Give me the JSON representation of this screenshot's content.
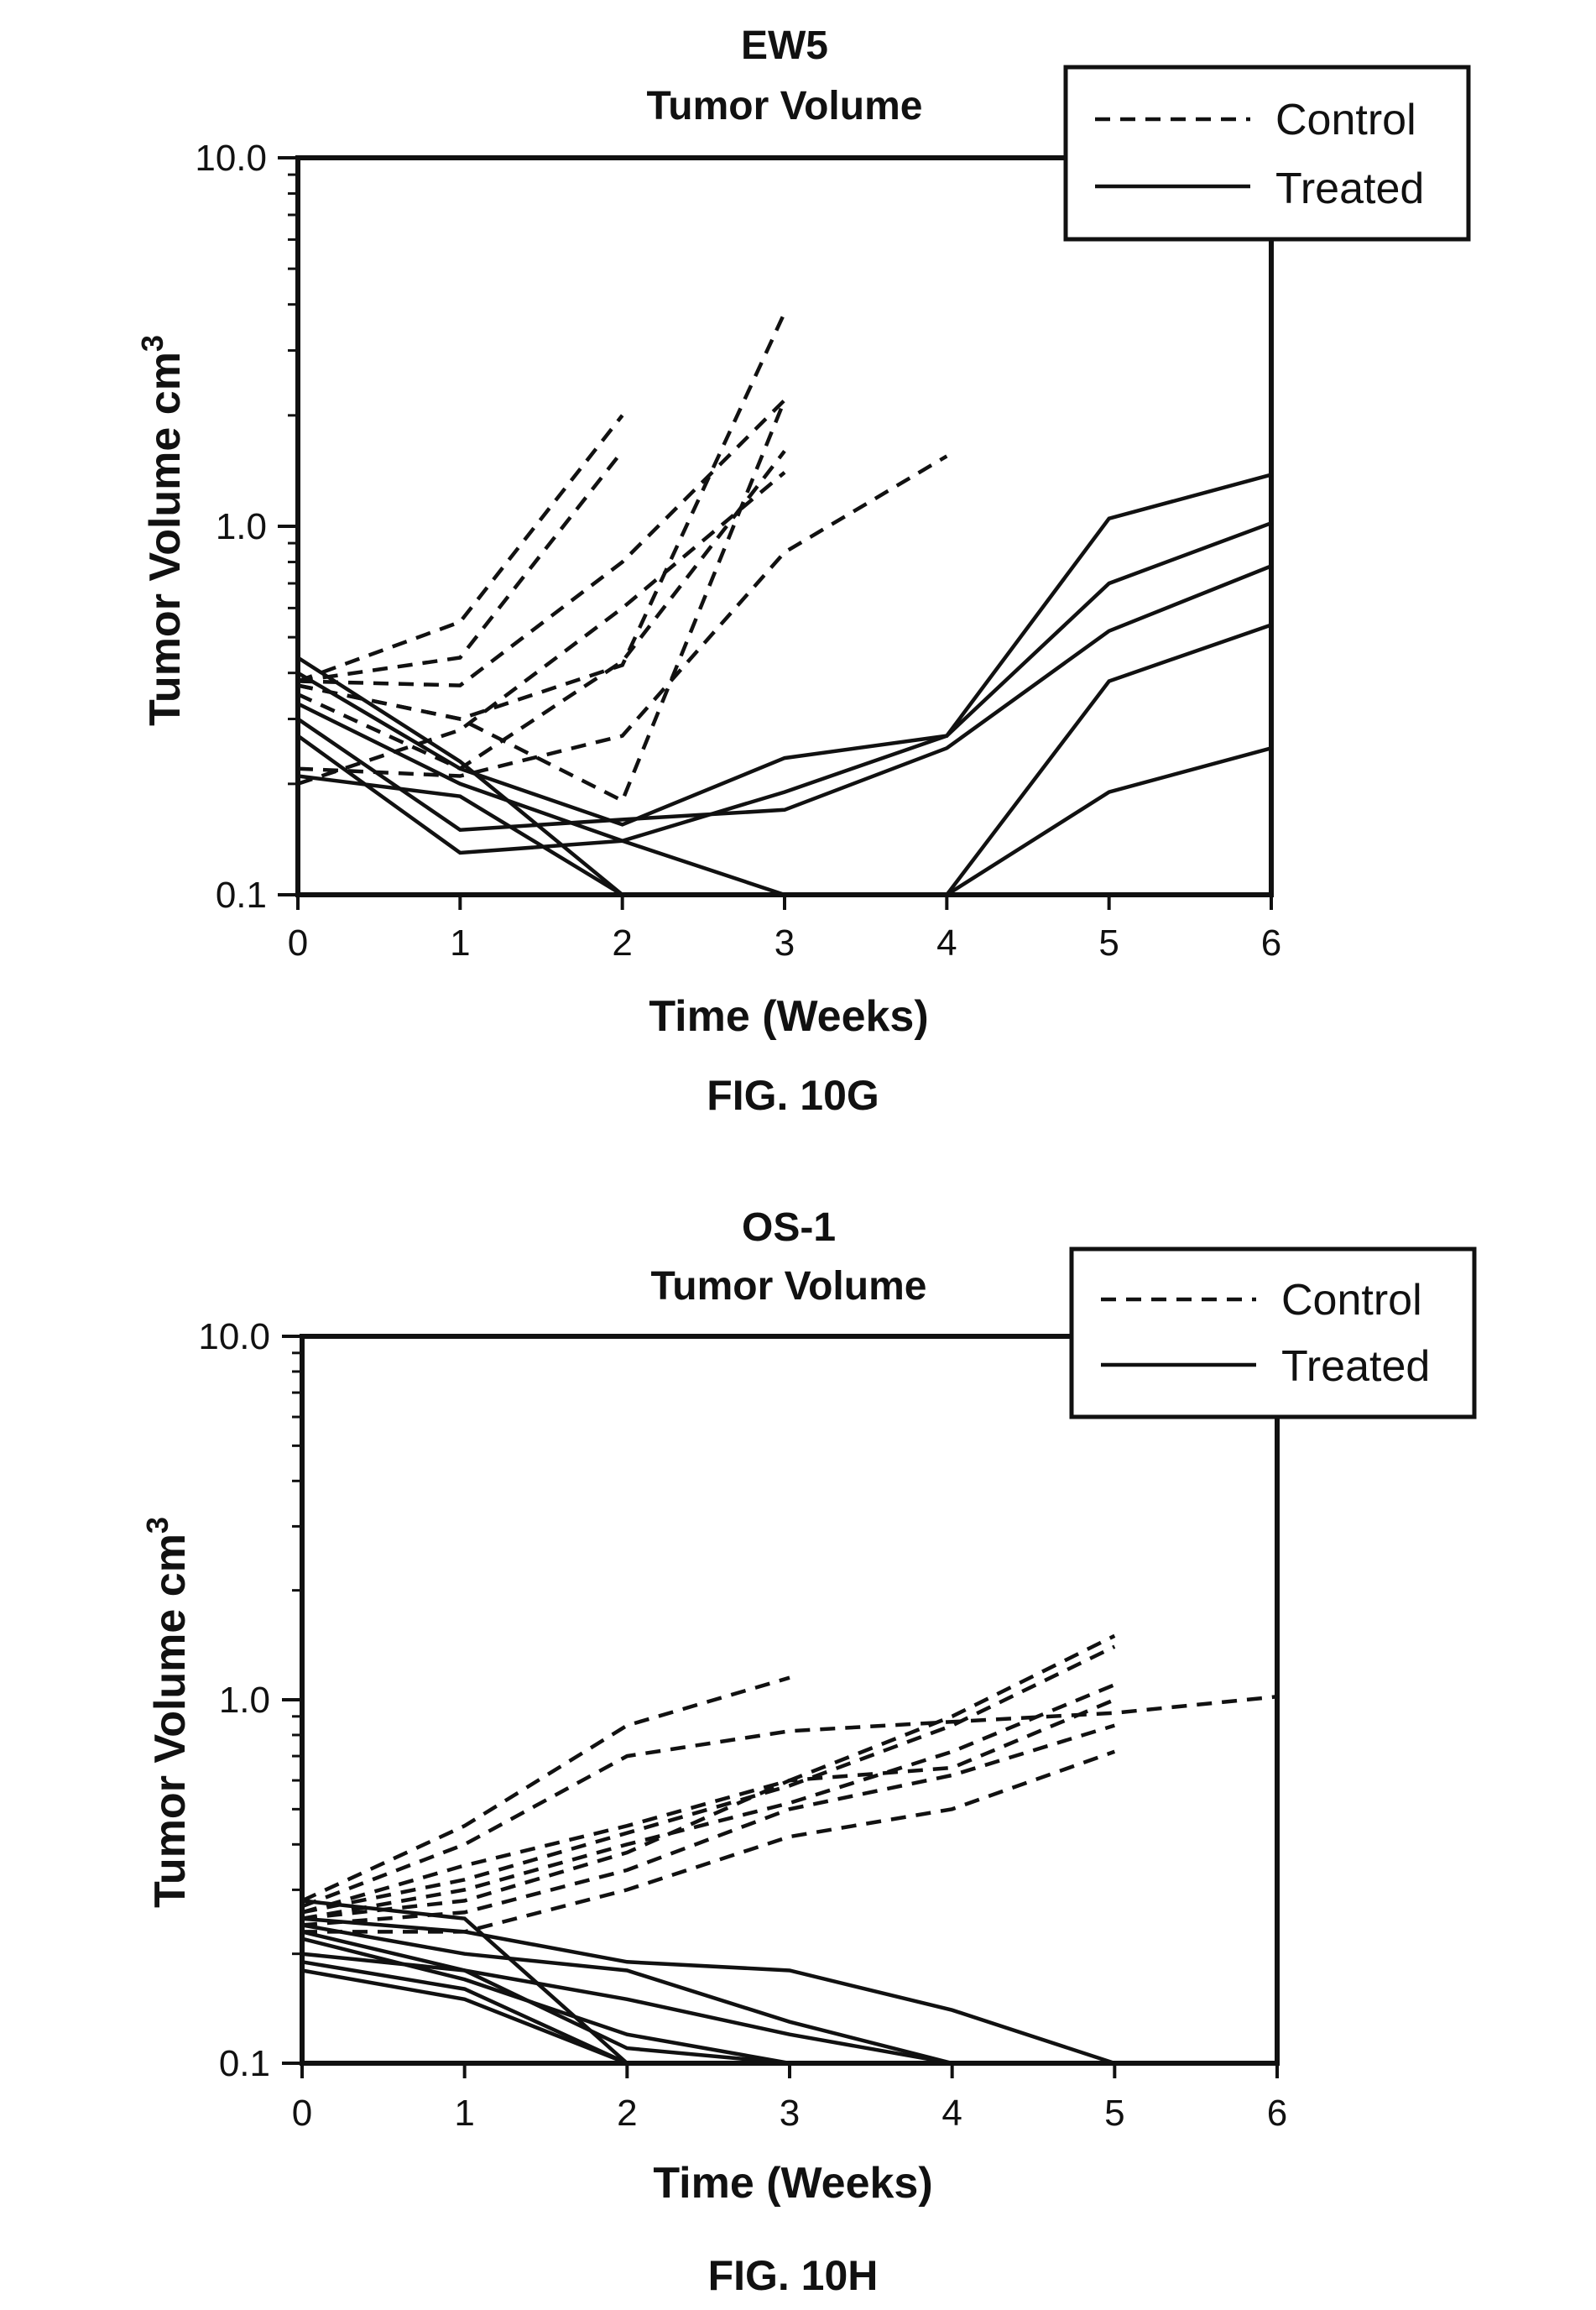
{
  "chart_data": [
    {
      "type": "line",
      "title_line1": "EW5",
      "title_line2": "Tumor Volume",
      "xlabel": "Time (Weeks)",
      "ylabel": "Tumor Volume cm",
      "ylabel_sup": "3",
      "figure_label": "FIG. 10G",
      "yscale": "log",
      "xlim": [
        0,
        6
      ],
      "ylim": [
        0.1,
        10
      ],
      "x_ticks": [
        "0",
        "1",
        "2",
        "3",
        "4",
        "5",
        "6"
      ],
      "y_ticks": [
        "0.1",
        "1.0",
        "10.0"
      ],
      "grid": false,
      "legend": {
        "placement": "top-right",
        "entries": [
          {
            "label": "Control",
            "style": "dashed"
          },
          {
            "label": "Treated",
            "style": "solid"
          }
        ]
      },
      "series": [
        {
          "group": "control",
          "x": [
            0,
            1,
            2
          ],
          "y": [
            0.38,
            0.55,
            2.0
          ]
        },
        {
          "group": "control",
          "x": [
            0,
            1,
            2
          ],
          "y": [
            0.38,
            0.44,
            1.6
          ]
        },
        {
          "group": "control",
          "x": [
            0,
            1,
            2,
            3
          ],
          "y": [
            0.38,
            0.37,
            0.8,
            2.2
          ]
        },
        {
          "group": "control",
          "x": [
            0,
            1,
            2,
            3
          ],
          "y": [
            0.37,
            0.3,
            0.42,
            3.8
          ]
        },
        {
          "group": "control",
          "x": [
            0,
            1,
            2,
            3
          ],
          "y": [
            0.37,
            0.3,
            0.18,
            2.2
          ]
        },
        {
          "group": "control",
          "x": [
            0,
            1,
            2,
            3
          ],
          "y": [
            0.35,
            0.22,
            0.43,
            1.6
          ]
        },
        {
          "group": "control",
          "x": [
            0,
            1,
            2,
            3,
            4
          ],
          "y": [
            0.22,
            0.21,
            0.27,
            0.85,
            1.55
          ]
        },
        {
          "group": "control",
          "x": [
            0,
            1,
            2,
            3
          ],
          "y": [
            0.2,
            0.28,
            0.6,
            1.4
          ]
        },
        {
          "group": "treated",
          "x": [
            0,
            1,
            2,
            3,
            4,
            5,
            6
          ],
          "y": [
            0.44,
            0.23,
            0.1,
            0.1,
            0.1,
            0.1,
            0.1
          ]
        },
        {
          "group": "treated",
          "x": [
            0,
            1,
            2,
            3,
            4,
            5,
            6
          ],
          "y": [
            0.4,
            0.22,
            0.155,
            0.235,
            0.27,
            1.05,
            1.38
          ]
        },
        {
          "group": "treated",
          "x": [
            0,
            1,
            2,
            3,
            4,
            5,
            6
          ],
          "y": [
            0.33,
            0.2,
            0.14,
            0.19,
            0.27,
            0.7,
            1.02
          ]
        },
        {
          "group": "treated",
          "x": [
            0,
            1,
            2,
            3,
            4,
            5,
            6
          ],
          "y": [
            0.3,
            0.15,
            0.16,
            0.17,
            0.25,
            0.52,
            0.78
          ]
        },
        {
          "group": "treated",
          "x": [
            0,
            1,
            2,
            3,
            4,
            5,
            6
          ],
          "y": [
            0.27,
            0.13,
            0.14,
            0.1,
            0.1,
            0.38,
            0.54
          ]
        },
        {
          "group": "treated",
          "x": [
            0,
            1,
            2,
            3,
            4,
            5,
            6
          ],
          "y": [
            0.21,
            0.185,
            0.1,
            0.1,
            0.1,
            0.19,
            0.25
          ]
        }
      ]
    },
    {
      "type": "line",
      "title_line1": "OS-1",
      "title_line2": "Tumor Volume",
      "xlabel": "Time (Weeks)",
      "ylabel": "Tumor Volume cm",
      "ylabel_sup": "3",
      "figure_label": "FIG. 10H",
      "yscale": "log",
      "xlim": [
        0,
        6
      ],
      "ylim": [
        0.1,
        10
      ],
      "x_ticks": [
        "0",
        "1",
        "2",
        "3",
        "4",
        "5",
        "6"
      ],
      "y_ticks": [
        "0.1",
        "1.0",
        "10.0"
      ],
      "grid": false,
      "legend": {
        "placement": "top-right",
        "entries": [
          {
            "label": "Control",
            "style": "dashed"
          },
          {
            "label": "Treated",
            "style": "solid"
          }
        ]
      },
      "series": [
        {
          "group": "control",
          "x": [
            0,
            1,
            2,
            3
          ],
          "y": [
            0.28,
            0.45,
            0.85,
            1.15
          ]
        },
        {
          "group": "control",
          "x": [
            0,
            1,
            2,
            3,
            4,
            5,
            6
          ],
          "y": [
            0.27,
            0.4,
            0.7,
            0.82,
            0.87,
            0.92,
            1.02
          ]
        },
        {
          "group": "control",
          "x": [
            0,
            1,
            2,
            3,
            4,
            5
          ],
          "y": [
            0.26,
            0.35,
            0.45,
            0.6,
            0.9,
            1.5
          ]
        },
        {
          "group": "control",
          "x": [
            0,
            1,
            2,
            3,
            4,
            5
          ],
          "y": [
            0.26,
            0.32,
            0.43,
            0.58,
            0.85,
            1.4
          ]
        },
        {
          "group": "control",
          "x": [
            0,
            1,
            2,
            3,
            4,
            5
          ],
          "y": [
            0.25,
            0.3,
            0.4,
            0.52,
            0.72,
            1.1
          ]
        },
        {
          "group": "control",
          "x": [
            0,
            1,
            2,
            3,
            4,
            5
          ],
          "y": [
            0.25,
            0.28,
            0.38,
            0.6,
            0.65,
            1.0
          ]
        },
        {
          "group": "control",
          "x": [
            0,
            1,
            2,
            3,
            4,
            5
          ],
          "y": [
            0.24,
            0.26,
            0.34,
            0.5,
            0.62,
            0.85
          ]
        },
        {
          "group": "control",
          "x": [
            0,
            1,
            2,
            3,
            4,
            5
          ],
          "y": [
            0.23,
            0.23,
            0.3,
            0.42,
            0.5,
            0.72
          ]
        },
        {
          "group": "treated",
          "x": [
            0,
            1,
            2,
            3,
            4,
            5
          ],
          "y": [
            0.28,
            0.25,
            0.1,
            0.1,
            0.1,
            0.1
          ]
        },
        {
          "group": "treated",
          "x": [
            0,
            1,
            2,
            3,
            4,
            5
          ],
          "y": [
            0.25,
            0.23,
            0.19,
            0.18,
            0.14,
            0.1
          ]
        },
        {
          "group": "treated",
          "x": [
            0,
            1,
            2,
            3,
            4,
            5
          ],
          "y": [
            0.24,
            0.2,
            0.18,
            0.13,
            0.1,
            0.1
          ]
        },
        {
          "group": "treated",
          "x": [
            0,
            1,
            2,
            3,
            4,
            5
          ],
          "y": [
            0.23,
            0.18,
            0.15,
            0.12,
            0.1,
            0.1
          ]
        },
        {
          "group": "treated",
          "x": [
            0,
            1,
            2,
            3,
            4,
            5
          ],
          "y": [
            0.22,
            0.17,
            0.12,
            0.1,
            0.1,
            0.1
          ]
        },
        {
          "group": "treated",
          "x": [
            0,
            1,
            2,
            3,
            4,
            5
          ],
          "y": [
            0.2,
            0.18,
            0.11,
            0.1,
            0.1,
            0.1
          ]
        },
        {
          "group": "treated",
          "x": [
            0,
            1,
            2,
            3,
            4,
            5
          ],
          "y": [
            0.19,
            0.16,
            0.1,
            0.1,
            0.1,
            0.1
          ]
        },
        {
          "group": "treated",
          "x": [
            0,
            1,
            2,
            3,
            4,
            5
          ],
          "y": [
            0.18,
            0.15,
            0.1,
            0.1,
            0.1,
            0.1
          ]
        }
      ]
    }
  ]
}
